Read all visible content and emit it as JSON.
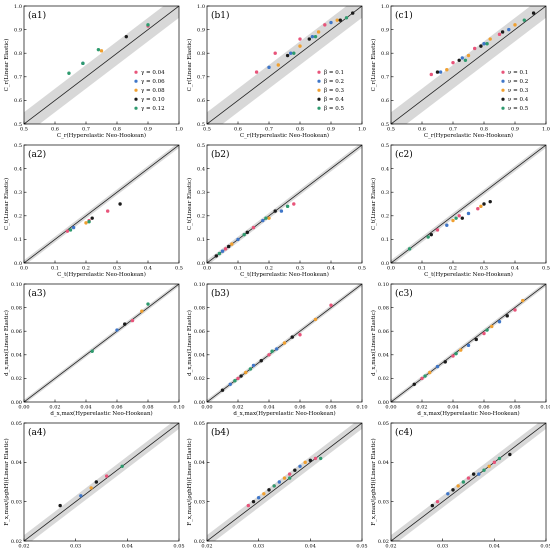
{
  "legends": {
    "a": [
      "γ = 0.04",
      "γ = 0.06",
      "γ = 0.08",
      "γ = 0.10",
      "γ = 0.12"
    ],
    "b": [
      "β = 0.1",
      "β = 0.2",
      "β = 0.3",
      "β = 0.4",
      "β = 0.5"
    ],
    "c": [
      "ν = 0.1",
      "ν = 0.2",
      "ν = 0.3",
      "ν = 0.4",
      "ν = 0.5"
    ]
  },
  "colors": [
    "#e8547a",
    "#3f76c8",
    "#f0a030",
    "#1a1a1a",
    "#2e9a6e"
  ],
  "chart_data": [
    {
      "type": "scatter",
      "panel": "(a1)",
      "xlabel": "C_r(Hyperelastic Neo-Hookean)",
      "ylabel": "C_r(Linear Elastic)",
      "xlim": [
        0.5,
        1.0
      ],
      "ylim": [
        0.5,
        1.0
      ],
      "ticks": [
        0.5,
        0.6,
        0.7,
        0.8,
        0.9,
        1.0
      ],
      "tick_labels": [
        "0.5",
        "0.6",
        "0.7",
        "0.8",
        "0.9",
        "1.0"
      ],
      "legend": "a",
      "band": 0.05,
      "series": [
        {
          "name": "γ = 0.04",
          "x": [
            0.9
          ],
          "y": [
            0.915
          ]
        },
        {
          "name": "γ = 0.06",
          "x": [
            0.69
          ],
          "y": [
            0.757
          ]
        },
        {
          "name": "γ = 0.08",
          "x": [
            0.75
          ],
          "y": [
            0.81
          ]
        },
        {
          "name": "γ = 0.10",
          "x": [
            0.83
          ],
          "y": [
            0.87
          ]
        },
        {
          "name": "γ = 0.12",
          "x": [
            0.645,
            0.69,
            0.74,
            0.9
          ],
          "y": [
            0.715,
            0.757,
            0.815,
            0.92
          ]
        }
      ]
    },
    {
      "type": "scatter",
      "panel": "(b1)",
      "xlabel": "C_r(Hyperelastic Neo-Hookean)",
      "ylabel": "C_r(Linear Elastic)",
      "xlim": [
        0.5,
        1.0
      ],
      "ylim": [
        0.5,
        1.0
      ],
      "ticks": [
        0.5,
        0.6,
        0.7,
        0.8,
        0.9,
        1.0
      ],
      "tick_labels": [
        "0.5",
        "0.6",
        "0.7",
        "0.8",
        "0.9",
        "1.0"
      ],
      "legend": "b",
      "band": 0.05,
      "series": [
        {
          "name": "β = 0.1",
          "x": [
            0.66,
            0.72,
            0.8,
            0.88
          ],
          "y": [
            0.72,
            0.8,
            0.86,
            0.92
          ]
        },
        {
          "name": "β = 0.2",
          "x": [
            0.7,
            0.77,
            0.84,
            0.9
          ],
          "y": [
            0.74,
            0.8,
            0.87,
            0.93
          ]
        },
        {
          "name": "β = 0.3",
          "x": [
            0.73,
            0.8,
            0.86,
            0.92
          ],
          "y": [
            0.75,
            0.83,
            0.89,
            0.94
          ]
        },
        {
          "name": "β = 0.4",
          "x": [
            0.76,
            0.83,
            0.93,
            0.97
          ],
          "y": [
            0.79,
            0.86,
            0.94,
            0.97
          ]
        },
        {
          "name": "β = 0.5",
          "x": [
            0.78,
            0.85,
            0.95
          ],
          "y": [
            0.8,
            0.87,
            0.95
          ]
        }
      ]
    },
    {
      "type": "scatter",
      "panel": "(c1)",
      "xlabel": "C_r(Hyperelastic Neo-Hookean)",
      "ylabel": "C_r(Linear Elastic)",
      "xlim": [
        0.5,
        1.0
      ],
      "ylim": [
        0.5,
        1.0
      ],
      "ticks": [
        0.5,
        0.6,
        0.7,
        0.8,
        0.9,
        1.0
      ],
      "tick_labels": [
        "0.5",
        "0.6",
        "0.7",
        "0.8",
        "0.9",
        "1.0"
      ],
      "legend": "c",
      "band": 0.05,
      "series": [
        {
          "name": "ν = 0.1",
          "x": [
            0.63,
            0.7,
            0.77,
            0.85
          ],
          "y": [
            0.71,
            0.76,
            0.82,
            0.88
          ]
        },
        {
          "name": "ν = 0.2",
          "x": [
            0.66,
            0.73,
            0.8,
            0.88
          ],
          "y": [
            0.72,
            0.78,
            0.84,
            0.9
          ]
        },
        {
          "name": "ν = 0.3",
          "x": [
            0.68,
            0.75,
            0.82,
            0.9
          ],
          "y": [
            0.73,
            0.79,
            0.86,
            0.92
          ]
        },
        {
          "name": "ν = 0.4",
          "x": [
            0.65,
            0.72,
            0.79,
            0.86,
            0.96
          ],
          "y": [
            0.72,
            0.77,
            0.83,
            0.89,
            0.97
          ]
        },
        {
          "name": "ν = 0.5",
          "x": [
            0.74,
            0.81,
            0.93
          ],
          "y": [
            0.77,
            0.84,
            0.94
          ]
        }
      ]
    },
    {
      "type": "scatter",
      "panel": "(a2)",
      "xlabel": "C_t(Hyperelastic Neo-Hookean)",
      "ylabel": "C_t(Linear Elastic)",
      "xlim": [
        0,
        0.5
      ],
      "ylim": [
        0,
        0.5
      ],
      "ticks": [
        0,
        0.1,
        0.2,
        0.3,
        0.4,
        0.5
      ],
      "tick_labels": [
        "0.0",
        "0.1",
        "0.2",
        "0.3",
        "0.4",
        "0.5"
      ],
      "legend": null,
      "band": 0.012,
      "series": [
        {
          "name": "",
          "x": [
            0.14,
            0.21,
            0.27
          ],
          "y": [
            0.135,
            0.18,
            0.22
          ]
        },
        {
          "name": "",
          "x": [
            0.16
          ],
          "y": [
            0.15
          ]
        },
        {
          "name": "",
          "x": [
            0.2
          ],
          "y": [
            0.17
          ]
        },
        {
          "name": "",
          "x": [
            0.22,
            0.31
          ],
          "y": [
            0.19,
            0.25
          ]
        },
        {
          "name": "",
          "x": [
            0.15,
            0.21
          ],
          "y": [
            0.14,
            0.175
          ]
        }
      ]
    },
    {
      "type": "scatter",
      "panel": "(b2)",
      "xlabel": "C_t(Hyperelastic Neo-Hookean)",
      "ylabel": "C_t(Linear Elastic)",
      "xlim": [
        0,
        0.5
      ],
      "ylim": [
        0,
        0.5
      ],
      "ticks": [
        0,
        0.1,
        0.2,
        0.3,
        0.4,
        0.5
      ],
      "tick_labels": [
        "0.0",
        "0.1",
        "0.2",
        "0.3",
        "0.4",
        "0.5"
      ],
      "legend": null,
      "band": 0.012,
      "series": [
        {
          "name": "",
          "x": [
            0.06,
            0.15,
            0.28
          ],
          "y": [
            0.06,
            0.15,
            0.25
          ]
        },
        {
          "name": "",
          "x": [
            0.05,
            0.1,
            0.18,
            0.24
          ],
          "y": [
            0.05,
            0.1,
            0.18,
            0.22
          ]
        },
        {
          "name": "",
          "x": [
            0.08,
            0.2
          ],
          "y": [
            0.08,
            0.19
          ]
        },
        {
          "name": "",
          "x": [
            0.03,
            0.07,
            0.13,
            0.22
          ],
          "y": [
            0.03,
            0.07,
            0.13,
            0.22
          ]
        },
        {
          "name": "",
          "x": [
            0.04,
            0.12,
            0.19,
            0.26
          ],
          "y": [
            0.04,
            0.12,
            0.19,
            0.24
          ]
        }
      ]
    },
    {
      "type": "scatter",
      "panel": "(c2)",
      "xlabel": "C_t(Hyperelastic Neo-Hookean)",
      "ylabel": "C_t(Linear Elastic)",
      "xlim": [
        0,
        0.5
      ],
      "ylim": [
        0,
        0.5
      ],
      "ticks": [
        0,
        0.1,
        0.2,
        0.3,
        0.4,
        0.5
      ],
      "tick_labels": [
        "0.0",
        "0.1",
        "0.2",
        "0.3",
        "0.4",
        "0.5"
      ],
      "legend": null,
      "band": 0.012,
      "series": [
        {
          "name": "",
          "x": [
            0.15,
            0.22,
            0.28
          ],
          "y": [
            0.14,
            0.2,
            0.23
          ]
        },
        {
          "name": "",
          "x": [
            0.18,
            0.25
          ],
          "y": [
            0.16,
            0.21
          ]
        },
        {
          "name": "",
          "x": [
            0.2,
            0.29
          ],
          "y": [
            0.18,
            0.24
          ]
        },
        {
          "name": "",
          "x": [
            0.13,
            0.23,
            0.3,
            0.32
          ],
          "y": [
            0.12,
            0.19,
            0.25,
            0.26
          ]
        },
        {
          "name": "",
          "x": [
            0.06,
            0.12,
            0.21
          ],
          "y": [
            0.06,
            0.11,
            0.19
          ]
        }
      ]
    },
    {
      "type": "scatter",
      "panel": "(a3)",
      "xlabel": "d_x,max(Hyperelastic Neo-Hookean)",
      "ylabel": "d_x,max(Linear Elastic)",
      "xlim": [
        0,
        0.1
      ],
      "ylim": [
        0,
        0.1
      ],
      "ticks": [
        0,
        0.02,
        0.04,
        0.06,
        0.08,
        0.1
      ],
      "tick_labels": [
        "0.00",
        "0.02",
        "0.04",
        "0.06",
        "0.08",
        "0.10"
      ],
      "legend": null,
      "band": 0.002,
      "series": [
        {
          "name": "",
          "x": [
            0.07
          ],
          "y": [
            0.069
          ]
        },
        {
          "name": "",
          "x": [
            0.06
          ],
          "y": [
            0.061
          ]
        },
        {
          "name": "",
          "x": [
            0.076
          ],
          "y": [
            0.077
          ]
        },
        {
          "name": "",
          "x": [
            0.065
          ],
          "y": [
            0.066
          ]
        },
        {
          "name": "",
          "x": [
            0.044,
            0.08
          ],
          "y": [
            0.043,
            0.083
          ]
        }
      ]
    },
    {
      "type": "scatter",
      "panel": "(b3)",
      "xlabel": "d_x,max(Hyperelastic Neo-Hookean)",
      "ylabel": "d_x,max(Linear Elastic)",
      "xlim": [
        0,
        0.1
      ],
      "ylim": [
        0,
        0.1
      ],
      "ticks": [
        0,
        0.02,
        0.04,
        0.06,
        0.08,
        0.1
      ],
      "tick_labels": [
        "0.00",
        "0.02",
        "0.04",
        "0.06",
        "0.08",
        "0.10"
      ],
      "legend": null,
      "band": 0.002,
      "series": [
        {
          "name": "",
          "x": [
            0.02,
            0.04,
            0.06,
            0.08
          ],
          "y": [
            0.02,
            0.04,
            0.057,
            0.082
          ]
        },
        {
          "name": "",
          "x": [
            0.015,
            0.03,
            0.045
          ],
          "y": [
            0.015,
            0.031,
            0.045
          ]
        },
        {
          "name": "",
          "x": [
            0.025,
            0.05,
            0.07
          ],
          "y": [
            0.025,
            0.05,
            0.07
          ]
        },
        {
          "name": "",
          "x": [
            0.01,
            0.022,
            0.035,
            0.055
          ],
          "y": [
            0.01,
            0.022,
            0.035,
            0.055
          ]
        },
        {
          "name": "",
          "x": [
            0.018,
            0.028,
            0.042
          ],
          "y": [
            0.018,
            0.028,
            0.043
          ]
        }
      ]
    },
    {
      "type": "scatter",
      "panel": "(c3)",
      "xlabel": "d_x,max(Hyperelastic Neo-Hookean)",
      "ylabel": "d_x,max(Linear Elastic)",
      "xlim": [
        0,
        0.1
      ],
      "ylim": [
        0,
        0.1
      ],
      "ticks": [
        0,
        0.02,
        0.04,
        0.06,
        0.08,
        0.1
      ],
      "tick_labels": [
        "0.00",
        "0.02",
        "0.04",
        "0.06",
        "0.08",
        "0.10"
      ],
      "legend": null,
      "band": 0.002,
      "series": [
        {
          "name": "",
          "x": [
            0.02,
            0.04,
            0.06,
            0.08
          ],
          "y": [
            0.02,
            0.039,
            0.058,
            0.078
          ]
        },
        {
          "name": "",
          "x": [
            0.03,
            0.05,
            0.07
          ],
          "y": [
            0.03,
            0.048,
            0.068
          ]
        },
        {
          "name": "",
          "x": [
            0.025,
            0.045,
            0.065,
            0.085
          ],
          "y": [
            0.025,
            0.044,
            0.064,
            0.086
          ]
        },
        {
          "name": "",
          "x": [
            0.015,
            0.035,
            0.055,
            0.075
          ],
          "y": [
            0.015,
            0.034,
            0.053,
            0.073
          ]
        },
        {
          "name": "",
          "x": [
            0.022,
            0.042,
            0.062
          ],
          "y": [
            0.022,
            0.041,
            0.061
          ]
        }
      ]
    },
    {
      "type": "scatter",
      "panel": "(a4)",
      "xlabel": "F_x,max/(ρghH)(Hyperelastic Neo-Hookean)",
      "ylabel": "F_x,max/(ρghH)(Linear Elastic)",
      "xlim": [
        0.02,
        0.05
      ],
      "ylim": [
        0.02,
        0.05
      ],
      "ticks": [
        0.02,
        0.03,
        0.04,
        0.05
      ],
      "tick_labels": [
        "0.02",
        "0.03",
        "0.04",
        "0.05"
      ],
      "legend": null,
      "band": 0.0015,
      "series": [
        {
          "name": "",
          "x": [
            0.036
          ],
          "y": [
            0.0365
          ]
        },
        {
          "name": "",
          "x": [
            0.031
          ],
          "y": [
            0.0315
          ]
        },
        {
          "name": "",
          "x": [
            0.033
          ],
          "y": [
            0.0335
          ]
        },
        {
          "name": "",
          "x": [
            0.027,
            0.034
          ],
          "y": [
            0.029,
            0.035
          ]
        },
        {
          "name": "",
          "x": [
            0.039
          ],
          "y": [
            0.039
          ]
        }
      ]
    },
    {
      "type": "scatter",
      "panel": "(b4)",
      "xlabel": "F_x,max/(ρghH)(Hyperelastic Neo-Hookean)",
      "ylabel": "F_x,max/(ρghH)(Linear Elastic)",
      "xlim": [
        0.02,
        0.05
      ],
      "ylim": [
        0.02,
        0.05
      ],
      "ticks": [
        0.02,
        0.03,
        0.04,
        0.05
      ],
      "tick_labels": [
        "0.02",
        "0.03",
        "0.04",
        "0.05"
      ],
      "legend": null,
      "band": 0.0015,
      "series": [
        {
          "name": "",
          "x": [
            0.028,
            0.033,
            0.036,
            0.041
          ],
          "y": [
            0.029,
            0.034,
            0.037,
            0.041
          ]
        },
        {
          "name": "",
          "x": [
            0.03,
            0.034,
            0.038
          ],
          "y": [
            0.031,
            0.035,
            0.039
          ]
        },
        {
          "name": "",
          "x": [
            0.031,
            0.035,
            0.039
          ],
          "y": [
            0.032,
            0.036,
            0.04
          ]
        },
        {
          "name": "",
          "x": [
            0.029,
            0.032,
            0.037,
            0.04
          ],
          "y": [
            0.03,
            0.033,
            0.038,
            0.0405
          ]
        },
        {
          "name": "",
          "x": [
            0.033,
            0.036,
            0.042
          ],
          "y": [
            0.034,
            0.036,
            0.041
          ]
        }
      ]
    },
    {
      "type": "scatter",
      "panel": "(c4)",
      "xlabel": "F_x,max/(ρghH)(Hyperelastic Neo-Hookean)",
      "ylabel": "F_x,max/(ρghH)(Linear Elastic)",
      "xlim": [
        0.02,
        0.05
      ],
      "ylim": [
        0.02,
        0.05
      ],
      "ticks": [
        0.02,
        0.03,
        0.04,
        0.05
      ],
      "tick_labels": [
        "0.02",
        "0.03",
        "0.04",
        "0.05"
      ],
      "legend": null,
      "band": 0.0015,
      "series": [
        {
          "name": "",
          "x": [
            0.029,
            0.035,
            0.04
          ],
          "y": [
            0.03,
            0.036,
            0.04
          ]
        },
        {
          "name": "",
          "x": [
            0.031,
            0.037
          ],
          "y": [
            0.032,
            0.037
          ]
        },
        {
          "name": "",
          "x": [
            0.033,
            0.039
          ],
          "y": [
            0.034,
            0.039
          ]
        },
        {
          "name": "",
          "x": [
            0.028,
            0.032,
            0.036,
            0.043
          ],
          "y": [
            0.029,
            0.033,
            0.037,
            0.042
          ]
        },
        {
          "name": "",
          "x": [
            0.034,
            0.038,
            0.041
          ],
          "y": [
            0.035,
            0.038,
            0.041
          ]
        }
      ]
    }
  ]
}
